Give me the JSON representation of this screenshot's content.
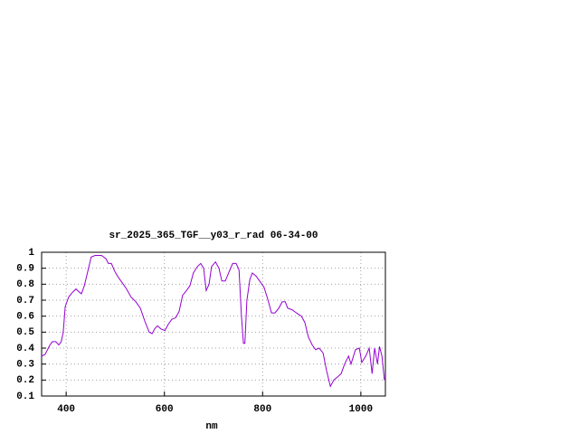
{
  "chart_data": {
    "type": "line",
    "title": "sr_2025_365_TGF__y03_r_rad 06-34-00",
    "x_label": "nm",
    "xlim": [
      350,
      1050
    ],
    "ylim": [
      0.1,
      1
    ],
    "xticks": [
      400,
      600,
      800,
      1000
    ],
    "yticks": [
      0.1,
      0.2,
      0.3,
      0.4,
      0.5,
      0.6,
      0.7,
      0.8,
      0.9,
      1
    ],
    "grid": true,
    "x": [
      350,
      357,
      367,
      372,
      379,
      385,
      390,
      394,
      398,
      405,
      413,
      420,
      427,
      431,
      437,
      444,
      451,
      459,
      472,
      481,
      486,
      492,
      499,
      507,
      514,
      523,
      532,
      542,
      551,
      560,
      569,
      575,
      580,
      586,
      593,
      601,
      608,
      615,
      623,
      630,
      637,
      645,
      652,
      659,
      667,
      674,
      680,
      685,
      691,
      696,
      704,
      711,
      717,
      724,
      732,
      739,
      746,
      752,
      757,
      761,
      764,
      768,
      774,
      779,
      787,
      794,
      803,
      811,
      818,
      825,
      833,
      840,
      846,
      851,
      860,
      869,
      879,
      886,
      893,
      901,
      908,
      915,
      923,
      930,
      938,
      945,
      953,
      960,
      967,
      975,
      980,
      989,
      997,
      1002,
      1010,
      1017,
      1023,
      1028,
      1034,
      1038,
      1043,
      1048
    ],
    "series": [
      {
        "color": "#9400d3",
        "values": [
          0.35,
          0.36,
          0.42,
          0.44,
          0.44,
          0.42,
          0.44,
          0.5,
          0.66,
          0.72,
          0.75,
          0.77,
          0.75,
          0.74,
          0.79,
          0.88,
          0.97,
          0.98,
          0.98,
          0.96,
          0.93,
          0.93,
          0.88,
          0.84,
          0.81,
          0.77,
          0.72,
          0.69,
          0.65,
          0.57,
          0.5,
          0.49,
          0.52,
          0.54,
          0.52,
          0.51,
          0.55,
          0.58,
          0.59,
          0.63,
          0.73,
          0.76,
          0.79,
          0.87,
          0.91,
          0.93,
          0.9,
          0.76,
          0.8,
          0.91,
          0.94,
          0.9,
          0.82,
          0.82,
          0.88,
          0.93,
          0.93,
          0.89,
          0.6,
          0.43,
          0.43,
          0.7,
          0.83,
          0.87,
          0.85,
          0.82,
          0.78,
          0.7,
          0.62,
          0.62,
          0.65,
          0.69,
          0.69,
          0.65,
          0.64,
          0.62,
          0.6,
          0.56,
          0.47,
          0.42,
          0.39,
          0.4,
          0.37,
          0.26,
          0.16,
          0.2,
          0.22,
          0.24,
          0.3,
          0.35,
          0.3,
          0.39,
          0.4,
          0.31,
          0.35,
          0.4,
          0.24,
          0.4,
          0.3,
          0.41,
          0.35,
          0.2
        ]
      }
    ]
  }
}
